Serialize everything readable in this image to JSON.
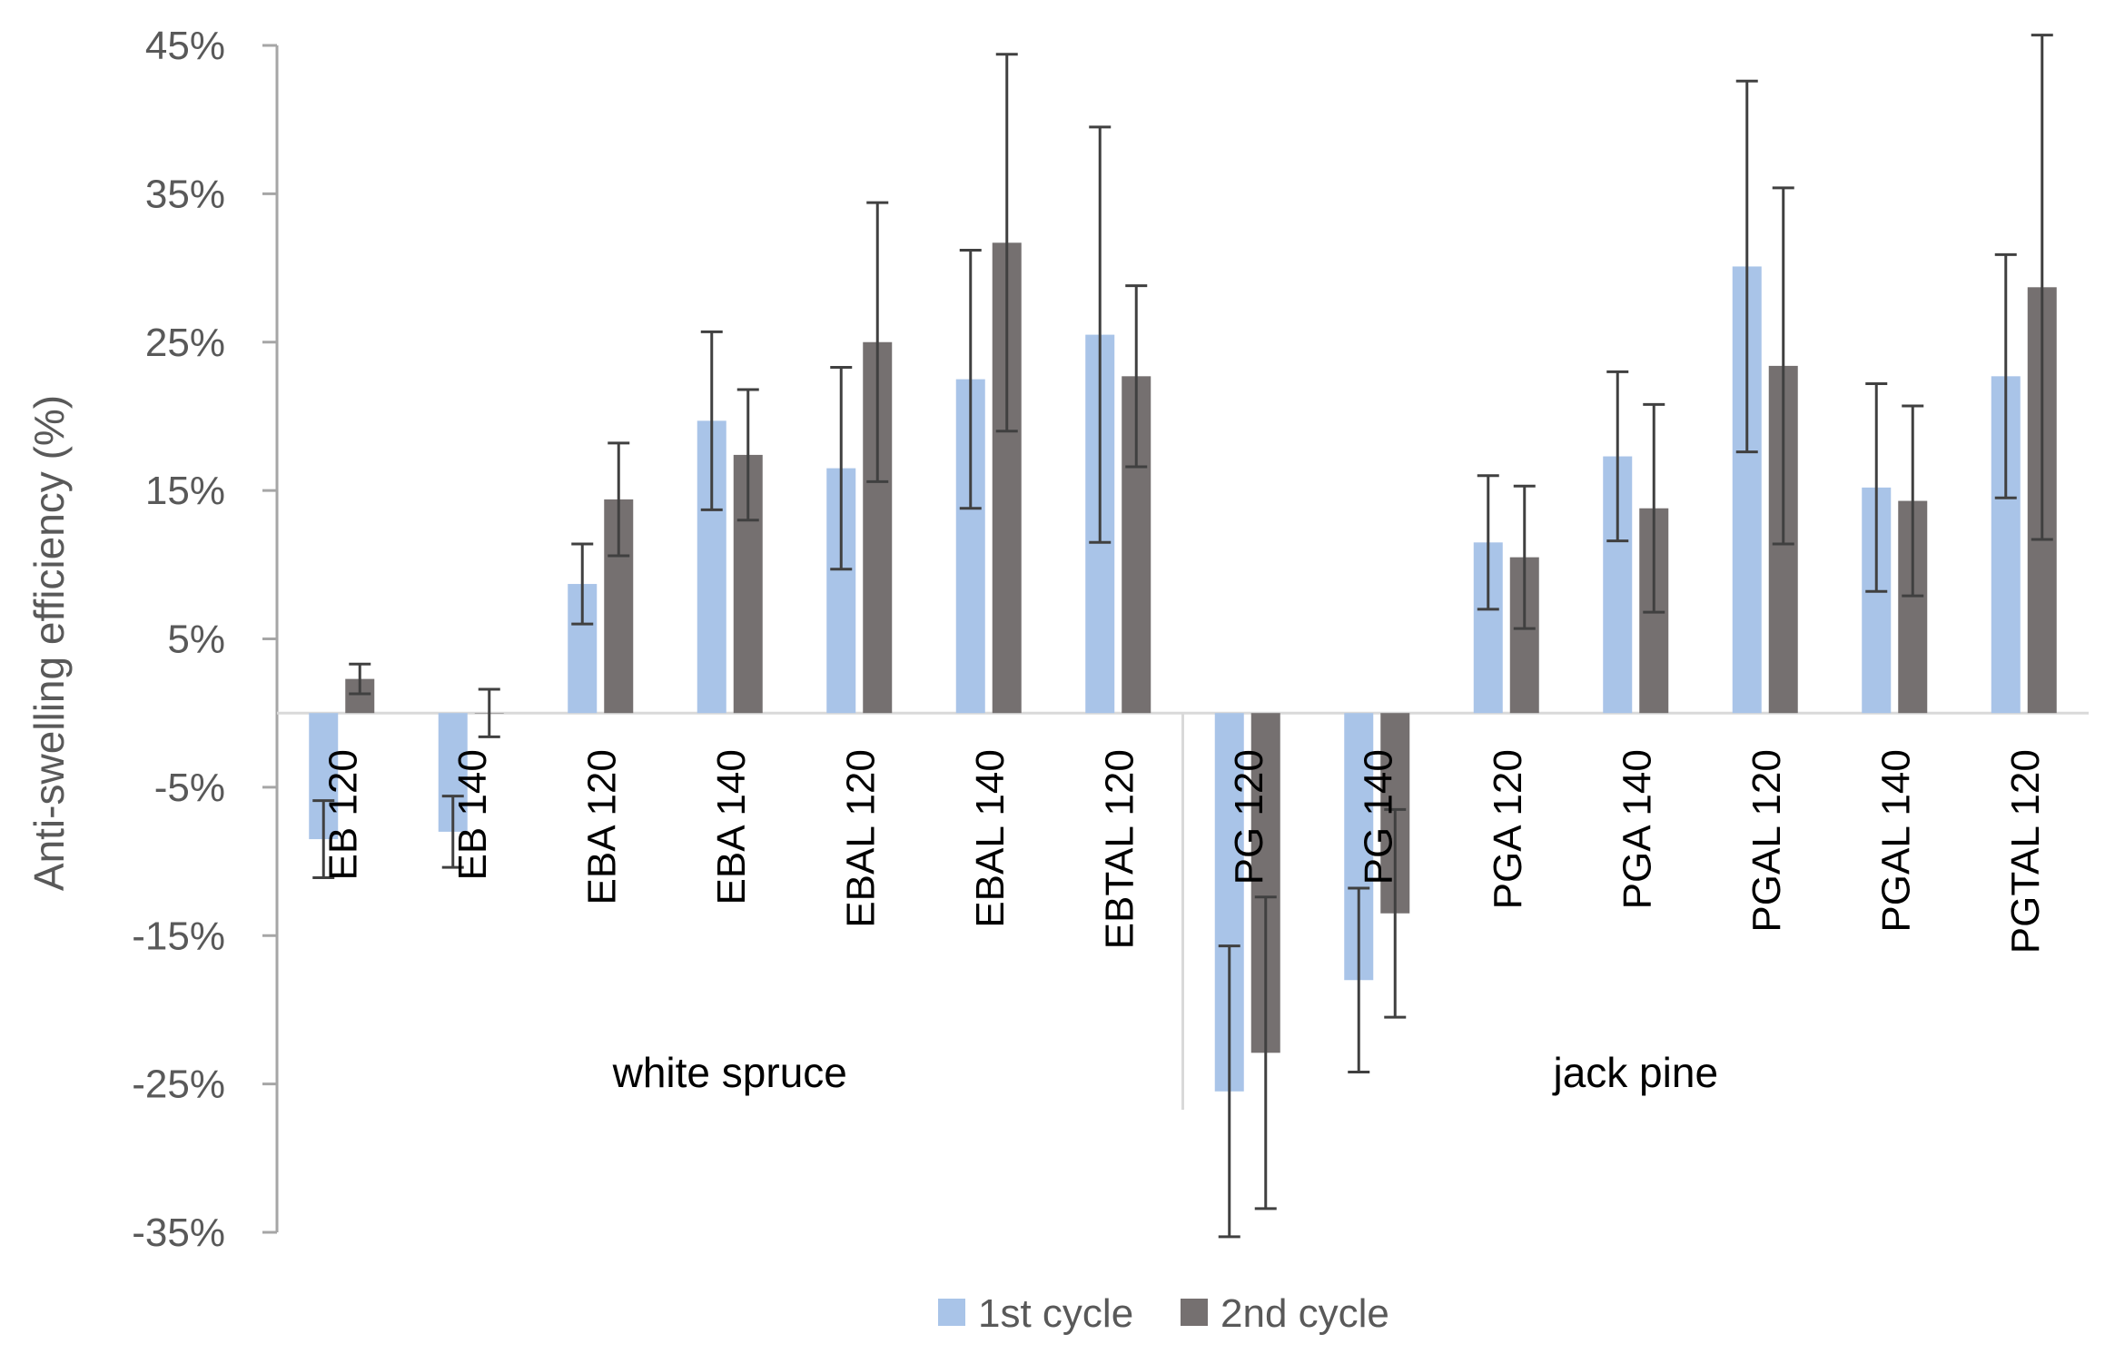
{
  "chart_data": {
    "type": "bar",
    "title": "",
    "xlabel": "",
    "ylabel": "Anti-swelling efficiency (%)",
    "ylim": [
      -35,
      45
    ],
    "yticks": [
      45,
      35,
      25,
      15,
      5,
      -5,
      -15,
      -25,
      -35
    ],
    "ytick_labels": [
      "45%",
      "35%",
      "25%",
      "15%",
      "5%",
      "-5%",
      "-15%",
      "-25%",
      "-35%"
    ],
    "grid": false,
    "legend_position": "bottom",
    "categories": [
      "EB 120",
      "EB 140",
      "EBA 120",
      "EBA 140",
      "EBAL 120",
      "EBAL 140",
      "EBTAL 120",
      "PG 120",
      "PG 140",
      "PGA 120",
      "PGA 140",
      "PGAL 120",
      "PGAL 140",
      "PGTAL 120"
    ],
    "groups": [
      {
        "name": "white spruce",
        "categories": [
          "EB 120",
          "EB 140",
          "EBA 120",
          "EBA 140",
          "EBAL 120",
          "EBAL 140",
          "EBTAL 120"
        ]
      },
      {
        "name": "jack pine",
        "categories": [
          "PG 120",
          "PG 140",
          "PGA 120",
          "PGA 140",
          "PGAL 120",
          "PGAL 140",
          "PGTAL 120"
        ]
      }
    ],
    "series": [
      {
        "name": "1st cycle",
        "color": "#a9c4e8",
        "values": [
          -8.5,
          -8,
          8.7,
          19.7,
          16.5,
          22.5,
          25.5,
          -25.5,
          -18,
          11.5,
          17.3,
          30.1,
          15.2,
          22.7
        ],
        "error": [
          2.6,
          2.4,
          2.7,
          6.0,
          6.8,
          8.7,
          14.0,
          9.8,
          6.2,
          4.5,
          5.7,
          12.5,
          7.0,
          8.2
        ]
      },
      {
        "name": "2nd cycle",
        "color": "#757070",
        "values": [
          2.3,
          0,
          14.4,
          17.4,
          25.0,
          31.7,
          22.7,
          -22.9,
          -13.5,
          10.5,
          13.8,
          23.4,
          14.3,
          28.7
        ],
        "error": [
          1.0,
          1.6,
          3.8,
          4.4,
          9.4,
          12.7,
          6.1,
          10.5,
          7.0,
          4.8,
          7.0,
          12.0,
          6.4,
          17.0
        ]
      }
    ]
  }
}
